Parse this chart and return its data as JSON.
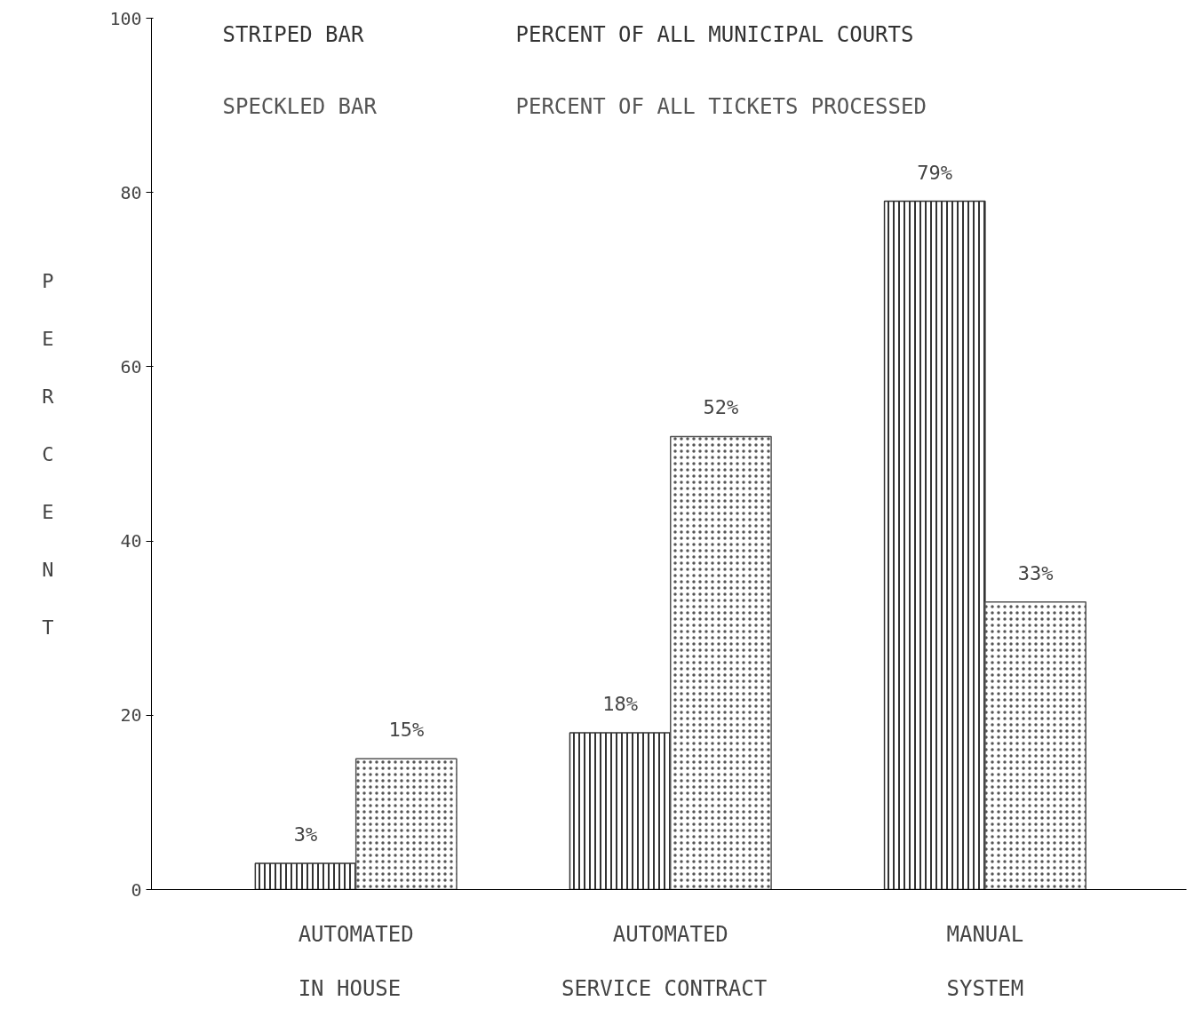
{
  "chart_data": {
    "type": "bar",
    "ylabel": "PERCENT",
    "categories": [
      "AUTOMATED\nIN  HOUSE",
      "AUTOMATED\nSERVICE  CONTRACT",
      "MANUAL\nSYSTEM"
    ],
    "series": [
      {
        "name": "PERCENT OF ALL MUNICIPAL COURTS",
        "color": "#333333",
        "values": [
          3,
          18,
          79
        ],
        "value_labels": [
          "3%",
          "18%",
          "79%"
        ]
      },
      {
        "name": "PERCENT OF ALL TICKETS PROCESSED",
        "color": "#555555",
        "values": [
          15,
          52,
          33
        ],
        "value_labels": [
          "15%",
          "52%",
          "33%"
        ]
      }
    ],
    "annotations": [
      "STRIPED BAR",
      "SPECKLED BAR"
    ],
    "ylim": [
      0,
      100
    ],
    "yticks": [
      0,
      20,
      40,
      60,
      80,
      100
    ],
    "grid": false
  }
}
